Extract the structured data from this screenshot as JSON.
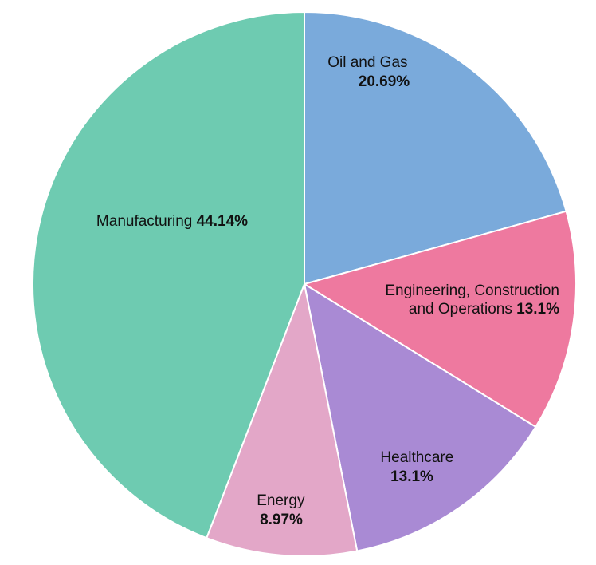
{
  "chart_data": {
    "type": "pie",
    "title": "",
    "slices": [
      {
        "label": "Oil and Gas",
        "value": 20.69,
        "value_label": "20.69%",
        "color": "#7aaadb"
      },
      {
        "label": "Engineering, Construction and Operations",
        "value": 13.1,
        "value_label": "13.1%",
        "color": "#ee799f"
      },
      {
        "label": "Healthcare",
        "value": 13.1,
        "value_label": "13.1%",
        "color": "#a98ad4"
      },
      {
        "label": "Energy",
        "value": 8.97,
        "value_label": "8.97%",
        "color": "#e3a7c8"
      },
      {
        "label": "Manufacturing",
        "value": 44.14,
        "value_label": "44.14%",
        "color": "#6ecbb1"
      }
    ]
  }
}
